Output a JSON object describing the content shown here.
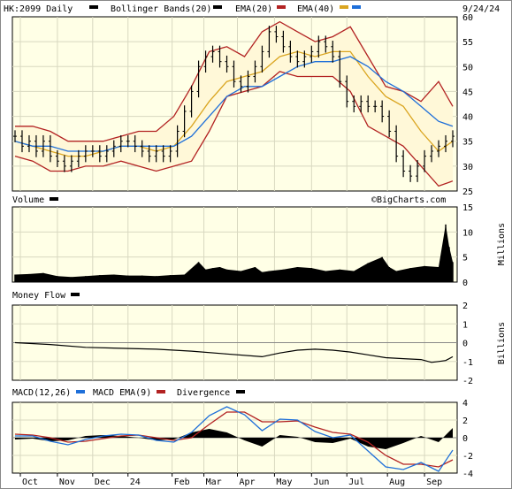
{
  "chart_data": [
    {
      "type": "line",
      "panel": "price",
      "title": "HK:2099 Daily",
      "date_label": "9/24/24",
      "legend": [
        {
          "label": "Bollinger Bands(20)",
          "color": "#000000"
        },
        {
          "label": "EMA(20)",
          "color": "#b22222"
        },
        {
          "label": "EMA(40)",
          "color": "#daa520"
        },
        {
          "label": "",
          "color": "#1e6fd9"
        }
      ],
      "legend_prefix": [
        "Bollinger Bands(20)",
        "EMA(20)",
        "EMA(40)"
      ],
      "ylim": [
        25,
        60
      ],
      "yticks": [
        "60",
        "55",
        "50",
        "45",
        "40",
        "35",
        "30",
        "25"
      ],
      "watermark": "©BigCharts.com",
      "grid": true,
      "series": [
        {
          "name": "Price (OHLC)",
          "color": "#000000",
          "x": [
            0,
            4,
            8,
            12,
            16,
            20,
            24,
            28,
            32,
            36,
            40,
            44,
            48,
            52,
            56,
            60,
            64,
            68,
            72,
            76,
            80,
            84,
            88,
            92,
            96,
            100,
            104,
            108,
            112,
            116,
            120,
            124,
            128,
            132,
            136,
            140,
            144,
            148,
            152,
            156,
            160,
            164,
            168,
            172,
            176,
            180,
            184,
            188,
            192,
            196,
            200,
            204,
            208,
            212,
            216,
            220,
            224,
            228,
            232,
            236,
            240,
            244,
            248
          ],
          "values": [
            36,
            34,
            35,
            33,
            35,
            32,
            31,
            30,
            31,
            32,
            33,
            33,
            32,
            33,
            34,
            35,
            35,
            34,
            33,
            32,
            33,
            32,
            33,
            37,
            41,
            45,
            50,
            52,
            53,
            51,
            50,
            47,
            46,
            48,
            50,
            53,
            57,
            56,
            54,
            52,
            51,
            52,
            53,
            55,
            54,
            52,
            47,
            43,
            42,
            43,
            42,
            42,
            40,
            37,
            32,
            29,
            28,
            30,
            32,
            33,
            34,
            35,
            36
          ]
        },
        {
          "name": "Bollinger Upper",
          "color": "#b22222",
          "x": [
            0,
            10,
            20,
            30,
            40,
            50,
            60,
            70,
            80,
            90,
            100,
            110,
            120,
            130,
            140,
            150,
            160,
            170,
            180,
            190,
            200,
            210,
            220,
            230,
            240,
            248
          ],
          "values": [
            38,
            38,
            37,
            35,
            35,
            35,
            36,
            37,
            37,
            40,
            46,
            53,
            54,
            52,
            57,
            59,
            57,
            55,
            56,
            58,
            52,
            46,
            45,
            43,
            47,
            42
          ]
        },
        {
          "name": "Bollinger Lower",
          "color": "#b22222",
          "x": [
            0,
            10,
            20,
            30,
            40,
            50,
            60,
            70,
            80,
            90,
            100,
            110,
            120,
            130,
            140,
            150,
            160,
            170,
            180,
            190,
            200,
            210,
            220,
            230,
            240,
            248
          ],
          "values": [
            32,
            31,
            29,
            29,
            30,
            30,
            31,
            30,
            29,
            30,
            31,
            37,
            44,
            45,
            46,
            49,
            48,
            48,
            48,
            45,
            38,
            36,
            34,
            30,
            26,
            27
          ]
        },
        {
          "name": "EMA(20)",
          "color": "#daa520",
          "x": [
            0,
            10,
            20,
            30,
            40,
            50,
            60,
            70,
            80,
            90,
            100,
            110,
            120,
            130,
            140,
            150,
            160,
            170,
            180,
            190,
            200,
            210,
            220,
            230,
            240,
            248
          ],
          "values": [
            35,
            34,
            33,
            32,
            32,
            33,
            34,
            34,
            33,
            34,
            38,
            43,
            47,
            48,
            49,
            52,
            53,
            52,
            53,
            53,
            48,
            44,
            42,
            37,
            33,
            35
          ]
        },
        {
          "name": "EMA(40)",
          "color": "#1e6fd9",
          "x": [
            0,
            10,
            20,
            30,
            40,
            50,
            60,
            70,
            80,
            90,
            100,
            110,
            120,
            130,
            140,
            150,
            160,
            170,
            180,
            190,
            200,
            210,
            220,
            230,
            240,
            248
          ],
          "values": [
            35,
            34,
            34,
            33,
            33,
            33,
            34,
            34,
            34,
            34,
            36,
            40,
            44,
            46,
            46,
            48,
            50,
            51,
            51,
            52,
            50,
            47,
            45,
            42,
            39,
            38
          ]
        }
      ]
    },
    {
      "type": "bar",
      "panel": "volume",
      "title": "Volume",
      "ylabel": "Millions",
      "ylim": [
        0,
        15
      ],
      "yticks": [
        "15",
        "10",
        "5",
        "0"
      ],
      "x": [
        0,
        8,
        16,
        24,
        32,
        40,
        48,
        56,
        64,
        72,
        80,
        88,
        96,
        104,
        108,
        112,
        116,
        120,
        128,
        136,
        140,
        144,
        152,
        160,
        168,
        176,
        184,
        192,
        200,
        208,
        212,
        216,
        224,
        232,
        240,
        244,
        246,
        248
      ],
      "values": [
        1.5,
        1.6,
        1.8,
        1.2,
        1.0,
        1.2,
        1.4,
        1.5,
        1.3,
        1.3,
        1.2,
        1.4,
        1.5,
        4.0,
        2.5,
        2.8,
        3.0,
        2.5,
        2.2,
        3.0,
        2.0,
        2.2,
        2.5,
        3.0,
        2.8,
        2.2,
        2.5,
        2.2,
        3.8,
        5.0,
        3.0,
        2.2,
        2.8,
        3.2,
        3.0,
        11.5,
        7.0,
        4.0
      ]
    },
    {
      "type": "line",
      "panel": "money_flow",
      "title": "Money Flow",
      "ylabel": "Billions",
      "ylim": [
        -2,
        2
      ],
      "yticks": [
        "2",
        "1",
        "0",
        "-1",
        "-2"
      ],
      "x": [
        0,
        20,
        40,
        60,
        80,
        100,
        120,
        140,
        150,
        160,
        170,
        180,
        190,
        200,
        210,
        220,
        230,
        236,
        240,
        244,
        248
      ],
      "values": [
        0,
        -0.1,
        -0.25,
        -0.3,
        -0.35,
        -0.45,
        -0.6,
        -0.75,
        -0.55,
        -0.4,
        -0.35,
        -0.4,
        -0.5,
        -0.65,
        -0.8,
        -0.85,
        -0.9,
        -1.05,
        -1.0,
        -0.95,
        -0.75
      ]
    },
    {
      "type": "line",
      "panel": "macd",
      "legend": [
        {
          "label": "MACD(12,26)",
          "color": "#1e6fd9"
        },
        {
          "label": "MACD EMA(9)",
          "color": "#b22222"
        },
        {
          "label": "Divergence",
          "color": "#000000"
        }
      ],
      "ylim": [
        -4,
        4
      ],
      "yticks": [
        "4",
        "2",
        "0",
        "-2",
        "-4"
      ],
      "x": [
        0,
        10,
        20,
        30,
        40,
        50,
        60,
        70,
        80,
        90,
        100,
        110,
        120,
        130,
        140,
        150,
        160,
        170,
        180,
        190,
        200,
        210,
        220,
        230,
        240,
        248
      ],
      "series": [
        {
          "name": "MACD(12,26)",
          "color": "#1e6fd9",
          "values": [
            0.2,
            0.2,
            -0.4,
            -0.8,
            -0.2,
            0.2,
            0.4,
            0.3,
            -0.3,
            -0.5,
            0.6,
            2.5,
            3.5,
            2.6,
            0.8,
            2.1,
            2.0,
            0.7,
            0.0,
            0.3,
            -1.5,
            -3.3,
            -3.6,
            -2.8,
            -3.8,
            -1.4
          ]
        },
        {
          "name": "MACD EMA(9)",
          "color": "#b22222",
          "values": [
            0.4,
            0.3,
            0.0,
            -0.5,
            -0.4,
            -0.1,
            0.2,
            0.3,
            0.0,
            -0.3,
            0.0,
            1.5,
            2.9,
            2.9,
            1.8,
            1.8,
            1.9,
            1.2,
            0.6,
            0.4,
            -0.5,
            -2.0,
            -3.0,
            -3.0,
            -3.3,
            -2.5
          ]
        },
        {
          "name": "Divergence",
          "color": "#000000",
          "values": [
            -0.2,
            -0.1,
            -0.4,
            -0.3,
            0.2,
            0.3,
            0.2,
            0.0,
            -0.3,
            -0.2,
            0.6,
            1.0,
            0.6,
            -0.3,
            -1.0,
            0.3,
            0.1,
            -0.5,
            -0.6,
            -0.1,
            -1.0,
            -1.3,
            -0.6,
            0.2,
            -0.5,
            1.1
          ]
        }
      ]
    }
  ],
  "x_axis": {
    "labels": [
      "Oct",
      "Nov",
      "Dec",
      "24",
      "Feb",
      "Mar",
      "Apr",
      "May",
      "Jun",
      "Jul",
      "Aug",
      "Sep"
    ],
    "positions": [
      3,
      24,
      44,
      64,
      89,
      107,
      126,
      147,
      168,
      188,
      211,
      232
    ]
  }
}
